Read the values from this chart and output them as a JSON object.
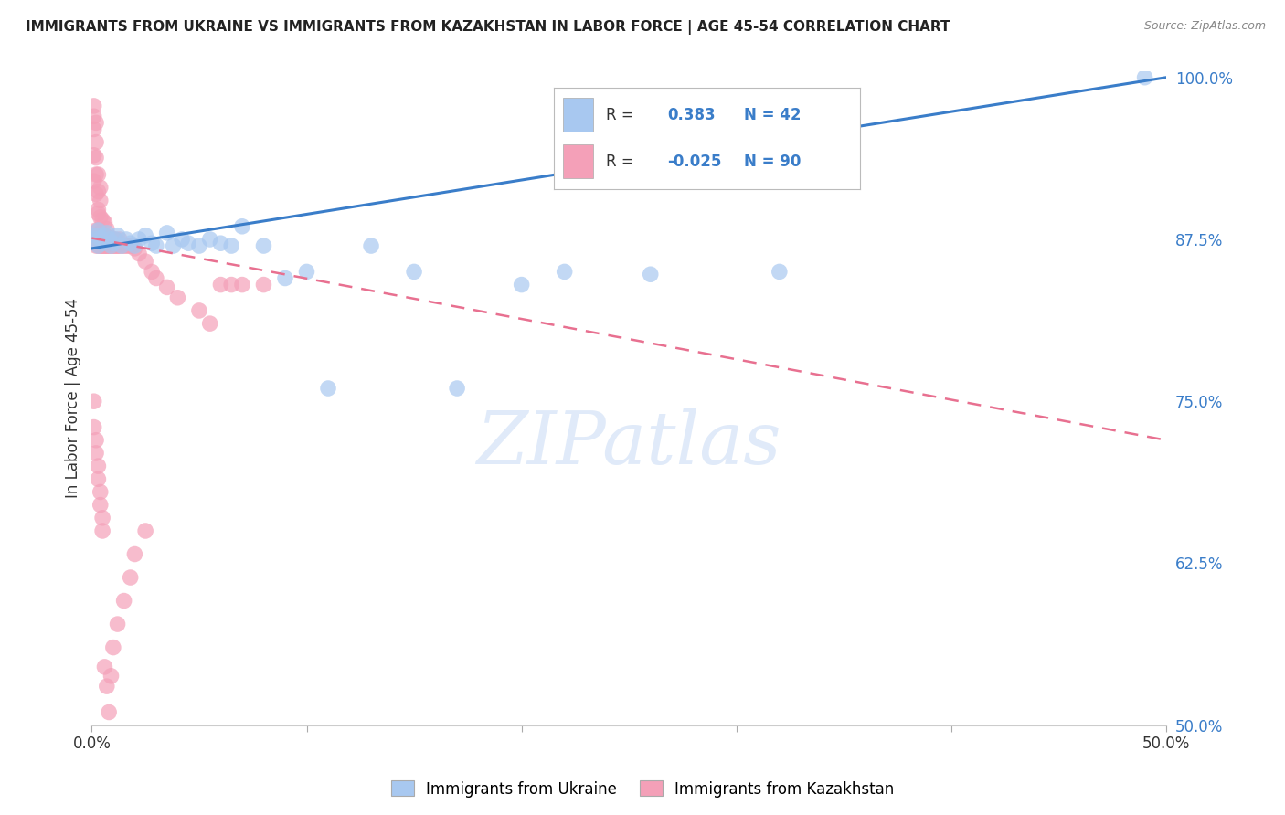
{
  "title": "IMMIGRANTS FROM UKRAINE VS IMMIGRANTS FROM KAZAKHSTAN IN LABOR FORCE | AGE 45-54 CORRELATION CHART",
  "source": "Source: ZipAtlas.com",
  "ylabel": "In Labor Force | Age 45-54",
  "x_min": 0.0,
  "x_max": 0.5,
  "y_min": 0.5,
  "y_max": 1.005,
  "x_ticks": [
    0.0,
    0.1,
    0.2,
    0.3,
    0.4,
    0.5
  ],
  "x_tick_labels": [
    "0.0%",
    "",
    "",
    "",
    "",
    "50.0%"
  ],
  "y_ticks": [
    0.5,
    0.625,
    0.75,
    0.875,
    1.0
  ],
  "y_tick_labels": [
    "50.0%",
    "62.5%",
    "75.0%",
    "87.5%",
    "100.0%"
  ],
  "ukraine_R": 0.383,
  "ukraine_N": 42,
  "kaz_R": -0.025,
  "kaz_N": 90,
  "ukraine_color": "#a8c8f0",
  "kaz_color": "#f4a0b8",
  "ukraine_line_color": "#3a7dc9",
  "kaz_line_color": "#e87090",
  "background_color": "#ffffff",
  "grid_color": "#dddddd",
  "watermark_text": "ZIPatlas",
  "watermark_color": "#ccddf5",
  "ukraine_scatter_x": [
    0.001,
    0.002,
    0.003,
    0.003,
    0.004,
    0.005,
    0.006,
    0.007,
    0.008,
    0.009,
    0.01,
    0.011,
    0.012,
    0.014,
    0.016,
    0.018,
    0.02,
    0.022,
    0.025,
    0.028,
    0.03,
    0.035,
    0.038,
    0.042,
    0.045,
    0.05,
    0.055,
    0.06,
    0.065,
    0.07,
    0.08,
    0.09,
    0.1,
    0.11,
    0.13,
    0.15,
    0.17,
    0.2,
    0.22,
    0.26,
    0.32,
    0.49
  ],
  "ukraine_scatter_y": [
    0.875,
    0.878,
    0.882,
    0.87,
    0.876,
    0.872,
    0.878,
    0.88,
    0.875,
    0.87,
    0.872,
    0.875,
    0.878,
    0.87,
    0.875,
    0.872,
    0.87,
    0.875,
    0.878,
    0.872,
    0.87,
    0.88,
    0.87,
    0.875,
    0.872,
    0.87,
    0.875,
    0.872,
    0.87,
    0.885,
    0.87,
    0.845,
    0.85,
    0.76,
    0.87,
    0.85,
    0.76,
    0.84,
    0.85,
    0.848,
    0.85,
    1.0
  ],
  "ukraine_line_x0": 0.0,
  "ukraine_line_y0": 0.868,
  "ukraine_line_x1": 0.5,
  "ukraine_line_y1": 1.0,
  "kaz_line_x0": 0.0,
  "kaz_line_y0": 0.876,
  "kaz_line_x1": 0.5,
  "kaz_line_y1": 0.72,
  "kaz_scatter_x": [
    0.001,
    0.001,
    0.001,
    0.001,
    0.001,
    0.002,
    0.002,
    0.002,
    0.002,
    0.002,
    0.002,
    0.002,
    0.003,
    0.003,
    0.003,
    0.003,
    0.003,
    0.003,
    0.004,
    0.004,
    0.004,
    0.004,
    0.004,
    0.004,
    0.005,
    0.005,
    0.005,
    0.005,
    0.006,
    0.006,
    0.006,
    0.006,
    0.007,
    0.007,
    0.007,
    0.007,
    0.008,
    0.008,
    0.008,
    0.009,
    0.009,
    0.01,
    0.01,
    0.01,
    0.011,
    0.011,
    0.012,
    0.012,
    0.012,
    0.013,
    0.013,
    0.014,
    0.015,
    0.016,
    0.017,
    0.018,
    0.019,
    0.02,
    0.022,
    0.025,
    0.028,
    0.03,
    0.035,
    0.04,
    0.05,
    0.055,
    0.06,
    0.065,
    0.07,
    0.08,
    0.001,
    0.001,
    0.002,
    0.002,
    0.003,
    0.003,
    0.004,
    0.004,
    0.005,
    0.005,
    0.006,
    0.007,
    0.008,
    0.009,
    0.01,
    0.012,
    0.015,
    0.018,
    0.02,
    0.025
  ],
  "kaz_scatter_y": [
    0.96,
    0.97,
    0.978,
    0.92,
    0.94,
    0.91,
    0.925,
    0.938,
    0.95,
    0.965,
    0.87,
    0.882,
    0.898,
    0.912,
    0.925,
    0.87,
    0.882,
    0.895,
    0.87,
    0.88,
    0.892,
    0.905,
    0.915,
    0.87,
    0.87,
    0.878,
    0.89,
    0.87,
    0.87,
    0.878,
    0.888,
    0.87,
    0.87,
    0.876,
    0.883,
    0.87,
    0.87,
    0.876,
    0.87,
    0.87,
    0.876,
    0.87,
    0.874,
    0.87,
    0.87,
    0.875,
    0.87,
    0.874,
    0.87,
    0.87,
    0.875,
    0.87,
    0.87,
    0.87,
    0.87,
    0.87,
    0.87,
    0.868,
    0.864,
    0.858,
    0.85,
    0.845,
    0.838,
    0.83,
    0.82,
    0.81,
    0.84,
    0.84,
    0.84,
    0.84,
    0.75,
    0.73,
    0.72,
    0.71,
    0.7,
    0.69,
    0.68,
    0.67,
    0.66,
    0.65,
    0.545,
    0.53,
    0.51,
    0.538,
    0.56,
    0.578,
    0.596,
    0.614,
    0.632,
    0.65
  ]
}
